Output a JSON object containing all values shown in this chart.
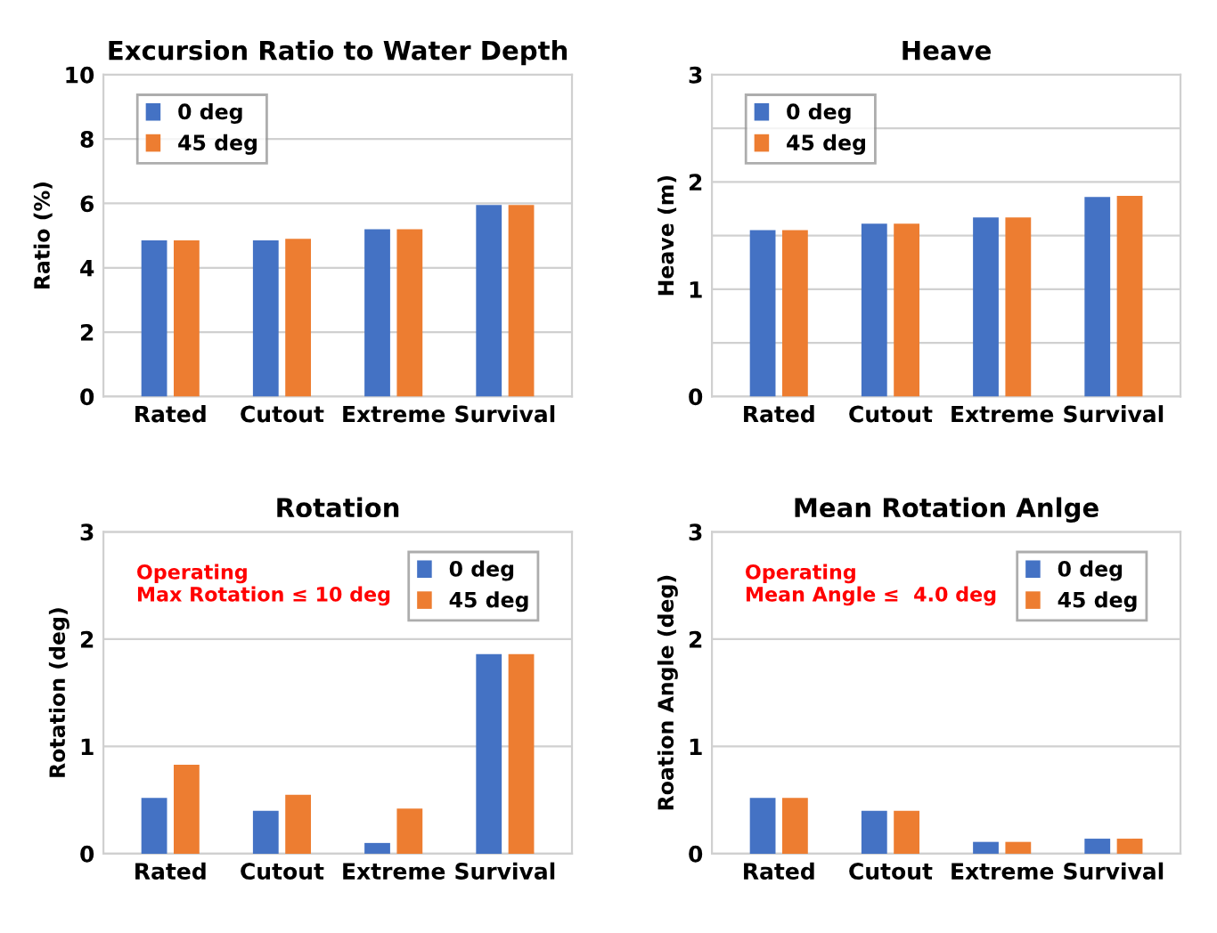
{
  "chart_data": [
    {
      "type": "bar",
      "title": "Excursion Ratio to Water Depth",
      "ylabel": "Ratio (%)",
      "categories": [
        "Rated",
        "Cutout",
        "Extreme",
        "Survival"
      ],
      "series": [
        {
          "name": "0 deg",
          "color": "#4472c4",
          "values": [
            4.85,
            4.85,
            5.2,
            5.95
          ]
        },
        {
          "name": "45 deg",
          "color": "#ed7d31",
          "values": [
            4.85,
            4.9,
            5.2,
            5.95
          ]
        }
      ],
      "ylim": [
        0,
        10
      ],
      "yticks": [
        0,
        2,
        4,
        6,
        8,
        10
      ],
      "grid": "y",
      "legend": "top left"
    },
    {
      "type": "bar",
      "title": "Heave",
      "ylabel": "Heave (m)",
      "categories": [
        "Rated",
        "Cutout",
        "Extreme",
        "Survival"
      ],
      "series": [
        {
          "name": "0 deg",
          "color": "#4472c4",
          "values": [
            1.55,
            1.61,
            1.67,
            1.86
          ]
        },
        {
          "name": "45 deg",
          "color": "#ed7d31",
          "values": [
            1.55,
            1.61,
            1.67,
            1.87
          ]
        }
      ],
      "ylim": [
        0,
        3
      ],
      "yticks": [
        0,
        {
          "value": 0.5,
          "label": null
        },
        1,
        {
          "value": 1.5,
          "label": null
        },
        2,
        {
          "value": 2.5,
          "label": null
        },
        3
      ],
      "grid": "y",
      "legend": "top left"
    },
    {
      "type": "bar",
      "title": "Rotation",
      "ylabel": "Rotation (deg)",
      "categories": [
        "Rated",
        "Cutout",
        "Extreme",
        "Survival"
      ],
      "series": [
        {
          "name": "0 deg",
          "color": "#4472c4",
          "values": [
            0.52,
            0.4,
            0.1,
            1.86
          ]
        },
        {
          "name": "45 deg",
          "color": "#ed7d31",
          "values": [
            0.83,
            0.55,
            0.42,
            1.86
          ]
        }
      ],
      "ylim": [
        0,
        3
      ],
      "yticks": [
        0,
        1,
        2,
        3
      ],
      "grid": "y",
      "legend": "top right",
      "annotations": [
        "Operating\nMax Rotation ≤ 10 deg"
      ]
    },
    {
      "type": "bar",
      "title": "Mean Rotation Anlge",
      "ylabel": "Roation Angle (deg)",
      "categories": [
        "Rated",
        "Cutout",
        "Extreme",
        "Survival"
      ],
      "series": [
        {
          "name": "0 deg",
          "color": "#4472c4",
          "values": [
            0.52,
            0.4,
            0.11,
            0.14
          ]
        },
        {
          "name": "45 deg",
          "color": "#ed7d31",
          "values": [
            0.52,
            0.4,
            0.11,
            0.14
          ]
        }
      ],
      "ylim": [
        0,
        3
      ],
      "yticks": [
        0,
        1,
        2,
        3
      ],
      "grid": "y",
      "legend": "top right",
      "annotations": [
        "Operating\nMean Angle ≤  4.0 deg"
      ]
    }
  ]
}
